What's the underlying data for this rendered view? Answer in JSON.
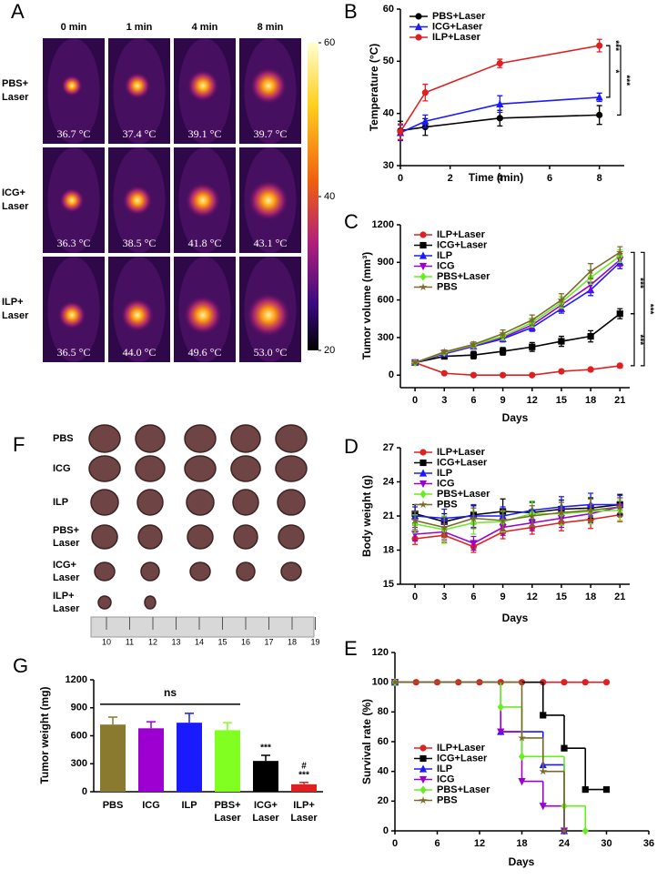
{
  "thermal_panel": {
    "label": "A",
    "columns": [
      "0 min",
      "1 min",
      "4 min",
      "8 min"
    ],
    "rows": [
      {
        "name": [
          "PBS+",
          "Laser"
        ],
        "temperatures": [
          "36.7 °C",
          "37.4 °C",
          "39.1 °C",
          "39.7 °C"
        ]
      },
      {
        "name": [
          "ICG+",
          "Laser"
        ],
        "temperatures": [
          "36.3 °C",
          "38.5 °C",
          "41.8 °C",
          "43.1 °C"
        ]
      },
      {
        "name": [
          "ILP+",
          "Laser"
        ],
        "temperatures": [
          "36.5 °C",
          "44.0 °C",
          "49.6 °C",
          "53.0 °C"
        ]
      }
    ],
    "colorbar_lim": [
      20,
      60
    ],
    "colorbar_ticks": [
      60,
      40,
      20
    ]
  },
  "tumor_photo_panel": {
    "label": "F",
    "rows": [
      [
        "PBS"
      ],
      [
        "ICG"
      ],
      [
        "ILP"
      ],
      [
        "PBS+",
        "Laser"
      ],
      [
        "ICG+",
        "Laser"
      ],
      [
        "ILP+",
        "Laser"
      ]
    ],
    "ruler_labels": [
      "10",
      "11",
      "12",
      "13",
      "14",
      "15",
      "16",
      "17",
      "18",
      "19"
    ]
  },
  "chart_data": [
    {
      "type": "line",
      "panel": "B",
      "xlabel": "Time (min)",
      "ylabel": "Temperature (°C)",
      "xlim": [
        0,
        9
      ],
      "xticks": [
        0,
        2,
        4,
        6,
        8
      ],
      "ylim": [
        30,
        60
      ],
      "yticks": [
        30,
        40,
        50,
        60
      ],
      "x": [
        0,
        1,
        4,
        8
      ],
      "series": [
        {
          "name": "PBS+Laser",
          "color": "#000000",
          "marker": "circle",
          "values": [
            36.7,
            37.4,
            39.1,
            39.7
          ],
          "errors": [
            1.8,
            1.6,
            1.5,
            1.8
          ]
        },
        {
          "name": "ICG+Laser",
          "color": "#1a1aff",
          "marker": "triangle-up",
          "values": [
            36.3,
            38.5,
            41.8,
            43.1
          ],
          "errors": [
            1.5,
            1.2,
            1.6,
            0.8
          ]
        },
        {
          "name": "ILP+Laser",
          "color": "#e02020",
          "marker": "circle",
          "values": [
            36.5,
            44.0,
            49.6,
            53.0
          ],
          "errors": [
            1.5,
            1.6,
            0.8,
            1.2
          ]
        }
      ],
      "annotations": [
        "***",
        "***",
        "*"
      ]
    },
    {
      "type": "line",
      "panel": "C",
      "xlabel": "Days",
      "ylabel": "Tumor volume (mm³)",
      "xlim": [
        -1.5,
        22
      ],
      "xticks": [
        0,
        3,
        6,
        9,
        12,
        15,
        18,
        21
      ],
      "ylim": [
        -100,
        1200
      ],
      "yticks": [
        0,
        300,
        600,
        900,
        1200
      ],
      "x": [
        0,
        3,
        6,
        9,
        12,
        15,
        18,
        21
      ],
      "series": [
        {
          "name": "ILP+Laser",
          "color": "#e02020",
          "marker": "circle",
          "values": [
            100,
            15,
            0,
            0,
            0,
            30,
            45,
            75
          ],
          "errors": [
            10,
            5,
            3,
            3,
            3,
            6,
            8,
            15
          ]
        },
        {
          "name": "ICG+Laser",
          "color": "#000000",
          "marker": "square",
          "values": [
            100,
            150,
            160,
            190,
            225,
            270,
            310,
            490
          ],
          "errors": [
            10,
            20,
            30,
            30,
            35,
            40,
            45,
            40
          ]
        },
        {
          "name": "ILP",
          "color": "#1a1aff",
          "marker": "triangle-up",
          "values": [
            100,
            170,
            230,
            290,
            380,
            530,
            680,
            900
          ],
          "errors": [
            10,
            15,
            20,
            25,
            30,
            35,
            45,
            50
          ]
        },
        {
          "name": "ICG",
          "color": "#9b00d0",
          "marker": "triangle-down",
          "values": [
            100,
            175,
            235,
            300,
            400,
            560,
            720,
            920
          ],
          "errors": [
            10,
            15,
            20,
            25,
            30,
            40,
            50,
            50
          ]
        },
        {
          "name": "PBS+Laser",
          "color": "#66ee22",
          "marker": "diamond",
          "values": [
            100,
            180,
            240,
            310,
            420,
            580,
            780,
            950
          ],
          "errors": [
            10,
            15,
            20,
            30,
            35,
            45,
            55,
            50
          ]
        },
        {
          "name": "PBS",
          "color": "#7a6a28",
          "marker": "star",
          "values": [
            100,
            185,
            245,
            330,
            440,
            600,
            830,
            980
          ],
          "errors": [
            10,
            15,
            20,
            30,
            40,
            50,
            60,
            45
          ]
        }
      ],
      "annotations": [
        "***",
        "***",
        "***"
      ]
    },
    {
      "type": "line",
      "panel": "D",
      "xlabel": "Days",
      "ylabel": "Body weight (g)",
      "xlim": [
        -1.5,
        22
      ],
      "xticks": [
        0,
        3,
        6,
        9,
        12,
        15,
        18,
        21
      ],
      "ylim": [
        15,
        27
      ],
      "yticks": [
        15,
        18,
        21,
        24,
        27
      ],
      "x": [
        0,
        3,
        6,
        9,
        12,
        15,
        18,
        21
      ],
      "series": [
        {
          "name": "ILP+Laser",
          "color": "#e02020",
          "marker": "circle",
          "values": [
            19.0,
            19.3,
            18.3,
            19.6,
            20.0,
            20.4,
            20.7,
            21.1
          ],
          "errors": [
            0.5,
            0.6,
            0.5,
            0.6,
            0.6,
            0.7,
            0.8,
            0.6
          ]
        },
        {
          "name": "ICG+Laser",
          "color": "#000000",
          "marker": "square",
          "values": [
            21.2,
            20.5,
            21.1,
            21.4,
            21.3,
            21.6,
            21.7,
            22.0
          ],
          "errors": [
            0.8,
            0.7,
            0.8,
            1.1,
            0.9,
            0.8,
            0.9,
            0.9
          ]
        },
        {
          "name": "ILP",
          "color": "#1a1aff",
          "marker": "triangle-up",
          "values": [
            21.0,
            20.8,
            21.0,
            21.0,
            21.5,
            21.8,
            22.0,
            22.0
          ],
          "errors": [
            0.8,
            0.8,
            1.0,
            0.8,
            0.8,
            0.9,
            1.0,
            0.8
          ]
        },
        {
          "name": "ICG",
          "color": "#9b00d0",
          "marker": "triangle-down",
          "values": [
            19.4,
            19.6,
            18.6,
            20.0,
            20.4,
            20.8,
            21.2,
            21.8
          ],
          "errors": [
            0.6,
            0.7,
            0.6,
            0.7,
            0.7,
            0.8,
            0.8,
            0.8
          ]
        },
        {
          "name": "PBS+Laser",
          "color": "#66ee22",
          "marker": "diamond",
          "values": [
            20.3,
            19.8,
            20.4,
            20.5,
            21.2,
            21.2,
            21.4,
            21.5
          ],
          "errors": [
            0.8,
            1.2,
            1.0,
            0.9,
            1.1,
            1.0,
            1.1,
            0.9
          ]
        },
        {
          "name": "PBS",
          "color": "#7a6a28",
          "marker": "star",
          "values": [
            20.6,
            20.0,
            20.8,
            20.6,
            21.0,
            21.3,
            21.5,
            21.8
          ],
          "errors": [
            0.8,
            0.9,
            0.9,
            0.9,
            0.9,
            0.9,
            1.0,
            0.8
          ]
        }
      ]
    },
    {
      "type": "step",
      "panel": "E",
      "xlabel": "Days",
      "ylabel": "Survival rate (%)",
      "xlim": [
        0,
        36
      ],
      "xticks": [
        0,
        6,
        12,
        18,
        24,
        30,
        36
      ],
      "ylim": [
        0,
        120
      ],
      "yticks": [
        0,
        20,
        40,
        60,
        80,
        100,
        120
      ],
      "series": [
        {
          "name": "ILP+Laser",
          "color": "#e02020",
          "marker": "circle",
          "x": [
            0,
            3,
            6,
            9,
            12,
            15,
            18,
            21,
            24,
            27,
            30
          ],
          "values": [
            100,
            100,
            100,
            100,
            100,
            100,
            100,
            100,
            100,
            100,
            100
          ]
        },
        {
          "name": "ICG+Laser",
          "color": "#000000",
          "marker": "square",
          "x": [
            0,
            21,
            24,
            27,
            30
          ],
          "values": [
            100,
            77.8,
            55.6,
            27.8,
            27.8
          ]
        },
        {
          "name": "ILP",
          "color": "#1a1aff",
          "marker": "triangle-up",
          "x": [
            0,
            15,
            21,
            24
          ],
          "values": [
            100,
            66.7,
            44.4,
            0
          ]
        },
        {
          "name": "ICG",
          "color": "#9b00d0",
          "marker": "triangle-down",
          "x": [
            0,
            15,
            18,
            21,
            24
          ],
          "values": [
            100,
            66.7,
            33.3,
            16.7,
            0
          ]
        },
        {
          "name": "PBS+Laser",
          "color": "#66ee22",
          "marker": "diamond",
          "x": [
            0,
            15,
            18,
            24,
            27
          ],
          "values": [
            100,
            83.3,
            50,
            16.7,
            0
          ]
        },
        {
          "name": "PBS",
          "color": "#7a6a28",
          "marker": "star",
          "x": [
            0,
            18,
            21,
            24
          ],
          "values": [
            100,
            62.5,
            40,
            0
          ]
        }
      ]
    },
    {
      "type": "bar",
      "panel": "G",
      "ylabel": "Tumor weight (mg)",
      "categories": [
        [
          "PBS"
        ],
        [
          "ICG"
        ],
        [
          "ILP"
        ],
        [
          "PBS+",
          "Laser"
        ],
        [
          "ICG+",
          "Laser"
        ],
        [
          "ILP+",
          "Laser"
        ]
      ],
      "values": [
        720,
        680,
        740,
        660,
        330,
        80
      ],
      "errors": [
        80,
        70,
        100,
        80,
        60,
        20
      ],
      "colors": [
        "#8a7a30",
        "#9b00d0",
        "#1a1aff",
        "#80ff20",
        "#000000",
        "#e02020"
      ],
      "ylim": [
        0,
        1200
      ],
      "yticks": [
        0,
        300,
        600,
        900,
        1200
      ],
      "annotations": [
        "ns",
        "***",
        "#",
        "***"
      ]
    }
  ]
}
